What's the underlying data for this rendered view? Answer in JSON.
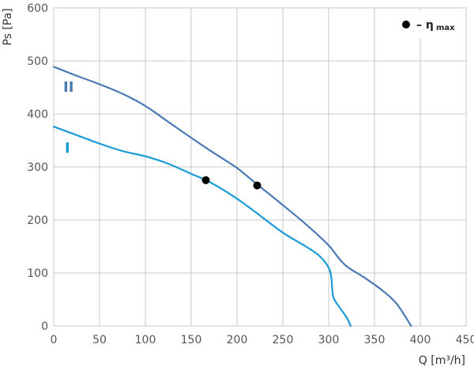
{
  "chart_data": {
    "type": "line",
    "title": "",
    "xlabel": "Q [m³/h]",
    "ylabel": "Ps [Pa]",
    "xlim": [
      0,
      450
    ],
    "ylim": [
      0,
      600
    ],
    "x_ticks": [
      0,
      50,
      100,
      150,
      200,
      250,
      300,
      350,
      400,
      450
    ],
    "y_ticks": [
      0,
      100,
      200,
      300,
      400,
      500,
      600
    ],
    "grid": true,
    "series": [
      {
        "name": "I",
        "color": "#1a9bd7",
        "x": [
          0,
          25,
          50,
          75,
          100,
          125,
          150,
          165,
          180,
          200,
          220,
          250,
          275,
          290,
          300,
          303,
          305,
          312,
          320,
          324
        ],
        "y": [
          376,
          360,
          344,
          330,
          320,
          306,
          287,
          276,
          262,
          240,
          215,
          176,
          150,
          132,
          110,
          90,
          55,
          35,
          15,
          0
        ],
        "marker_point": {
          "x": 166,
          "y": 275
        }
      },
      {
        "name": "II",
        "color": "#4a7ab5",
        "x": [
          0,
          25,
          50,
          75,
          100,
          125,
          150,
          175,
          200,
          222,
          250,
          275,
          300,
          310,
          320,
          340,
          360,
          375,
          390
        ],
        "y": [
          489,
          472,
          456,
          438,
          415,
          385,
          355,
          326,
          298,
          267,
          228,
          192,
          152,
          130,
          112,
          90,
          65,
          40,
          0
        ],
        "marker_point": {
          "x": 222,
          "y": 265
        }
      }
    ],
    "legend": {
      "position": "top-right",
      "marker": "black-dot",
      "text": "– η",
      "subscript": "max"
    }
  }
}
